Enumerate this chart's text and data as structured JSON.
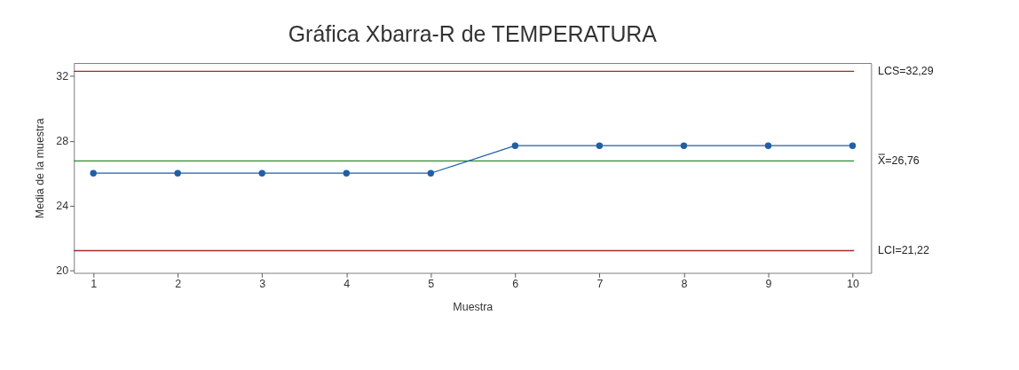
{
  "chart_data": {
    "type": "line",
    "title": "Gráfica Xbarra-R de TEMPERATURA",
    "xlabel": "Muestra",
    "ylabel": "Media de la muestra",
    "x": [
      1,
      2,
      3,
      4,
      5,
      6,
      7,
      8,
      9,
      10
    ],
    "series": [
      {
        "color": "#1f5fa8",
        "values": [
          26.0,
          26.0,
          26.0,
          26.0,
          26.0,
          27.7,
          27.7,
          27.7,
          27.7,
          27.7
        ]
      }
    ],
    "xlim": [
      0.77,
      10.22
    ],
    "xticks": [
      1,
      2,
      3,
      4,
      5,
      6,
      7,
      8,
      9,
      10
    ],
    "ylim": [
      19.85,
      32.8
    ],
    "yticks": [
      20,
      24,
      28,
      32
    ],
    "ref_lines": [
      {
        "axis": "y",
        "value": 32.29,
        "label": "LCS=32,29",
        "color": "#a52a2a"
      },
      {
        "axis": "y",
        "value": 26.76,
        "label": "X̿=26,76",
        "color": "#2e8b2e"
      },
      {
        "axis": "y",
        "value": 21.22,
        "label": "LCI=21,22",
        "color": "#a52a2a"
      }
    ],
    "grid": false,
    "marker": "circle",
    "line_style": "solid"
  }
}
